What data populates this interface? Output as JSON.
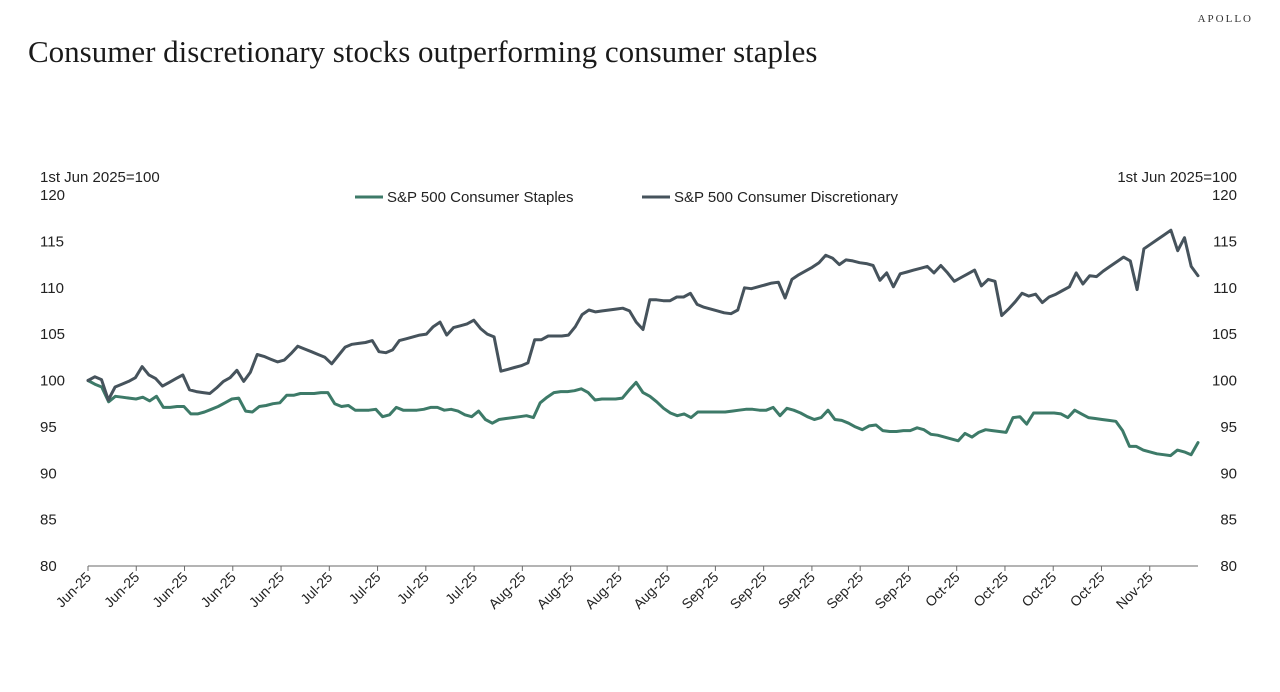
{
  "brand": "APOLLO",
  "title": "Consumer discretionary stocks outperforming consumer staples",
  "chart_data": {
    "type": "line",
    "title": "Consumer discretionary stocks outperforming consumer staples",
    "ylabel_left": "1st Jun 2025=100",
    "ylabel_right": "1st Jun 2025=100",
    "ylim": [
      80,
      120
    ],
    "yticks": [
      120,
      115,
      110,
      105,
      100,
      95,
      90,
      85,
      80
    ],
    "legend_position": "top-center",
    "x_tick_labels": [
      "Jun-25",
      "Jun-25",
      "Jun-25",
      "Jun-25",
      "Jun-25",
      "Jul-25",
      "Jul-25",
      "Jul-25",
      "Jul-25",
      "Aug-25",
      "Aug-25",
      "Aug-25",
      "Aug-25",
      "Sep-25",
      "Sep-25",
      "Sep-25",
      "Sep-25",
      "Sep-25",
      "Oct-25",
      "Oct-25",
      "Oct-25",
      "Oct-25",
      "Nov-25"
    ],
    "colors": {
      "staples": "#3d7a68",
      "discretionary": "#46535c"
    },
    "series": [
      {
        "name": "S&P 500 Consumer Staples",
        "key": "staples",
        "values": [
          100.0,
          99.6,
          99.3,
          97.7,
          98.3,
          98.2,
          98.1,
          98.0,
          98.2,
          97.8,
          98.3,
          97.1,
          97.1,
          97.2,
          97.2,
          96.4,
          96.4,
          96.6,
          96.9,
          97.2,
          97.6,
          98.0,
          98.1,
          96.7,
          96.6,
          97.2,
          97.3,
          97.5,
          97.6,
          98.4,
          98.4,
          98.6,
          98.6,
          98.6,
          98.7,
          98.7,
          97.5,
          97.2,
          97.3,
          96.8,
          96.8,
          96.8,
          96.9,
          96.1,
          96.3,
          97.1,
          96.8,
          96.8,
          96.8,
          96.9,
          97.1,
          97.1,
          96.8,
          96.9,
          96.7,
          96.3,
          96.1,
          96.7,
          95.8,
          95.4,
          95.8,
          95.9,
          96.0,
          96.1,
          96.2,
          96.0,
          97.6,
          98.2,
          98.7,
          98.8,
          98.8,
          98.9,
          99.1,
          98.7,
          97.9,
          98.0,
          98.0,
          98.0,
          98.1,
          99.0,
          99.8,
          98.7,
          98.3,
          97.7,
          97.0,
          96.5,
          96.2,
          96.4,
          96.0,
          96.6,
          96.6,
          96.6,
          96.6,
          96.6,
          96.7,
          96.8,
          96.9,
          96.9,
          96.8,
          96.8,
          97.1,
          96.2,
          97.0,
          96.8,
          96.5,
          96.1,
          95.8,
          96.0,
          96.8,
          95.8,
          95.7,
          95.4,
          95.0,
          94.7,
          95.1,
          95.2,
          94.6,
          94.5,
          94.5,
          94.6,
          94.6,
          94.9,
          94.7,
          94.2,
          94.1,
          93.9,
          93.7,
          93.5,
          94.3,
          93.9,
          94.4,
          94.7,
          94.6,
          94.5,
          94.4,
          96.0,
          96.1,
          95.3,
          96.5,
          96.5,
          96.5,
          96.5,
          96.4,
          96.0,
          96.8,
          96.4,
          96.0,
          95.9,
          95.8,
          95.7,
          95.6,
          94.6,
          92.9,
          92.9,
          92.5,
          92.3,
          92.1,
          92.0,
          91.9,
          92.5,
          92.3,
          92.0,
          93.3
        ]
      },
      {
        "name": "S&P 500 Consumer Discretionary",
        "key": "discretionary",
        "values": [
          100.0,
          100.4,
          100.1,
          97.9,
          99.3,
          99.6,
          99.9,
          100.3,
          101.5,
          100.6,
          100.2,
          99.4,
          99.8,
          100.2,
          100.6,
          99.0,
          98.8,
          98.7,
          98.6,
          99.2,
          99.9,
          100.3,
          101.1,
          99.9,
          100.9,
          102.8,
          102.6,
          102.3,
          102.0,
          102.2,
          102.9,
          103.7,
          103.4,
          103.1,
          102.8,
          102.5,
          101.8,
          102.7,
          103.6,
          103.9,
          104.0,
          104.1,
          104.3,
          103.1,
          103.0,
          103.3,
          104.3,
          104.5,
          104.7,
          104.9,
          105.0,
          105.8,
          106.3,
          104.9,
          105.7,
          105.9,
          106.1,
          106.5,
          105.6,
          105.0,
          104.7,
          101.0,
          101.2,
          101.4,
          101.6,
          101.9,
          104.4,
          104.4,
          104.8,
          104.8,
          104.8,
          104.9,
          105.8,
          107.1,
          107.6,
          107.4,
          107.5,
          107.6,
          107.7,
          107.8,
          107.5,
          106.3,
          105.5,
          108.7,
          108.7,
          108.6,
          108.6,
          109.0,
          109.0,
          109.4,
          108.2,
          107.9,
          107.7,
          107.5,
          107.3,
          107.2,
          107.6,
          110.0,
          109.9,
          110.1,
          110.3,
          110.5,
          110.6,
          108.9,
          110.9,
          111.4,
          111.8,
          112.2,
          112.7,
          113.5,
          113.2,
          112.5,
          113.0,
          112.9,
          112.7,
          112.6,
          112.4,
          110.8,
          111.6,
          110.1,
          111.5,
          111.7,
          111.9,
          112.1,
          112.3,
          111.6,
          112.4,
          111.6,
          110.7,
          111.1,
          111.5,
          111.9,
          110.2,
          110.9,
          110.7,
          107.0,
          107.7,
          108.5,
          109.4,
          109.1,
          109.3,
          108.4,
          109.0,
          109.3,
          109.7,
          110.1,
          111.6,
          110.4,
          111.3,
          111.2,
          111.8,
          112.3,
          112.8,
          113.3,
          112.9,
          109.8,
          114.2,
          114.7,
          115.2,
          115.7,
          116.2,
          114.0,
          115.4,
          112.3,
          111.3
        ]
      }
    ]
  }
}
